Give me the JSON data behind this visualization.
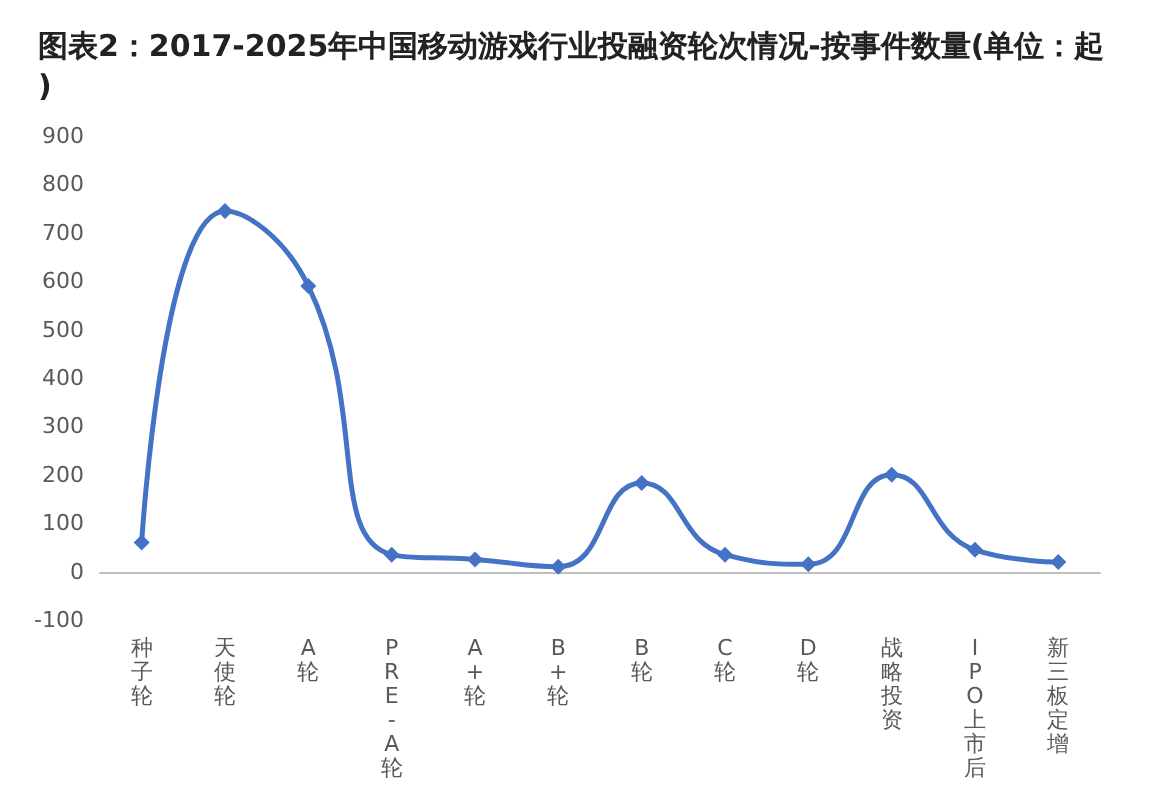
{
  "chart_data": {
    "type": "line",
    "title": "图表2：2017-2025年中国移动游戏行业投融资轮次情况-按事件数量(单位：起)",
    "categories": [
      "种子轮",
      "天使轮",
      "A轮",
      "PRE-A轮",
      "A+轮",
      "B+轮",
      "B轮",
      "C轮",
      "D轮",
      "战略投资",
      "IPO上市后",
      "新三板定增"
    ],
    "series": [
      {
        "color": "#4472c4",
        "values": [
          60,
          745,
          590,
          35,
          25,
          10,
          183,
          35,
          15,
          200,
          45,
          20
        ]
      }
    ],
    "ylim": [
      -100,
      900
    ],
    "yticks": [
      -100,
      0,
      100,
      200,
      300,
      400,
      500,
      600,
      700,
      800,
      900
    ],
    "marker": "diamond",
    "line_style": "solid"
  }
}
